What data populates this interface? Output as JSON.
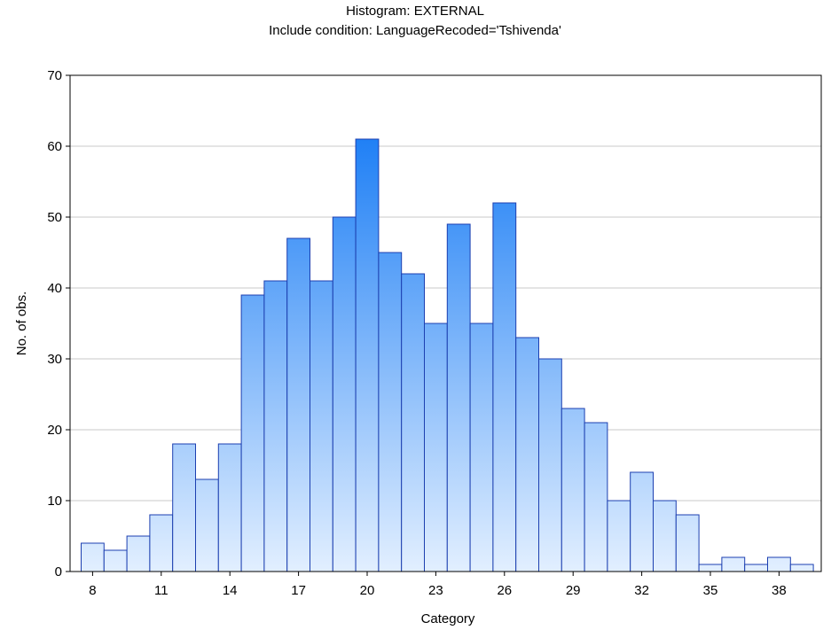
{
  "chart_data": {
    "type": "bar",
    "title": "Histogram: EXTERNAL",
    "subtitle": "Include condition: LanguageRecoded='Tshivenda'",
    "xlabel": "Category",
    "ylabel": "No. of obs.",
    "categories": [
      8,
      9,
      10,
      11,
      12,
      13,
      14,
      15,
      16,
      17,
      18,
      19,
      20,
      21,
      22,
      23,
      24,
      25,
      26,
      27,
      28,
      29,
      30,
      31,
      32,
      33,
      34,
      35,
      36,
      37,
      38,
      39
    ],
    "values": [
      4,
      3,
      5,
      8,
      18,
      13,
      18,
      39,
      41,
      47,
      41,
      50,
      61,
      45,
      42,
      35,
      49,
      35,
      52,
      33,
      30,
      23,
      21,
      10,
      14,
      10,
      8,
      1,
      2,
      1,
      2,
      1
    ],
    "x_tick_labels": [
      "8",
      "11",
      "14",
      "17",
      "20",
      "23",
      "26",
      "29",
      "32",
      "35",
      "38"
    ],
    "x_tick_values": [
      8,
      11,
      14,
      17,
      20,
      23,
      26,
      29,
      32,
      35,
      38
    ],
    "ylim": [
      0,
      70
    ],
    "y_ticks": [
      0,
      10,
      20,
      30,
      40,
      50,
      60,
      70
    ],
    "grid": true,
    "colors": {
      "bar_top": "#1e7ff5",
      "bar_bottom": "#e2efff",
      "bar_stroke": "#1c3fb0",
      "grid": "#c8c8c8",
      "frame": "#000000"
    }
  }
}
